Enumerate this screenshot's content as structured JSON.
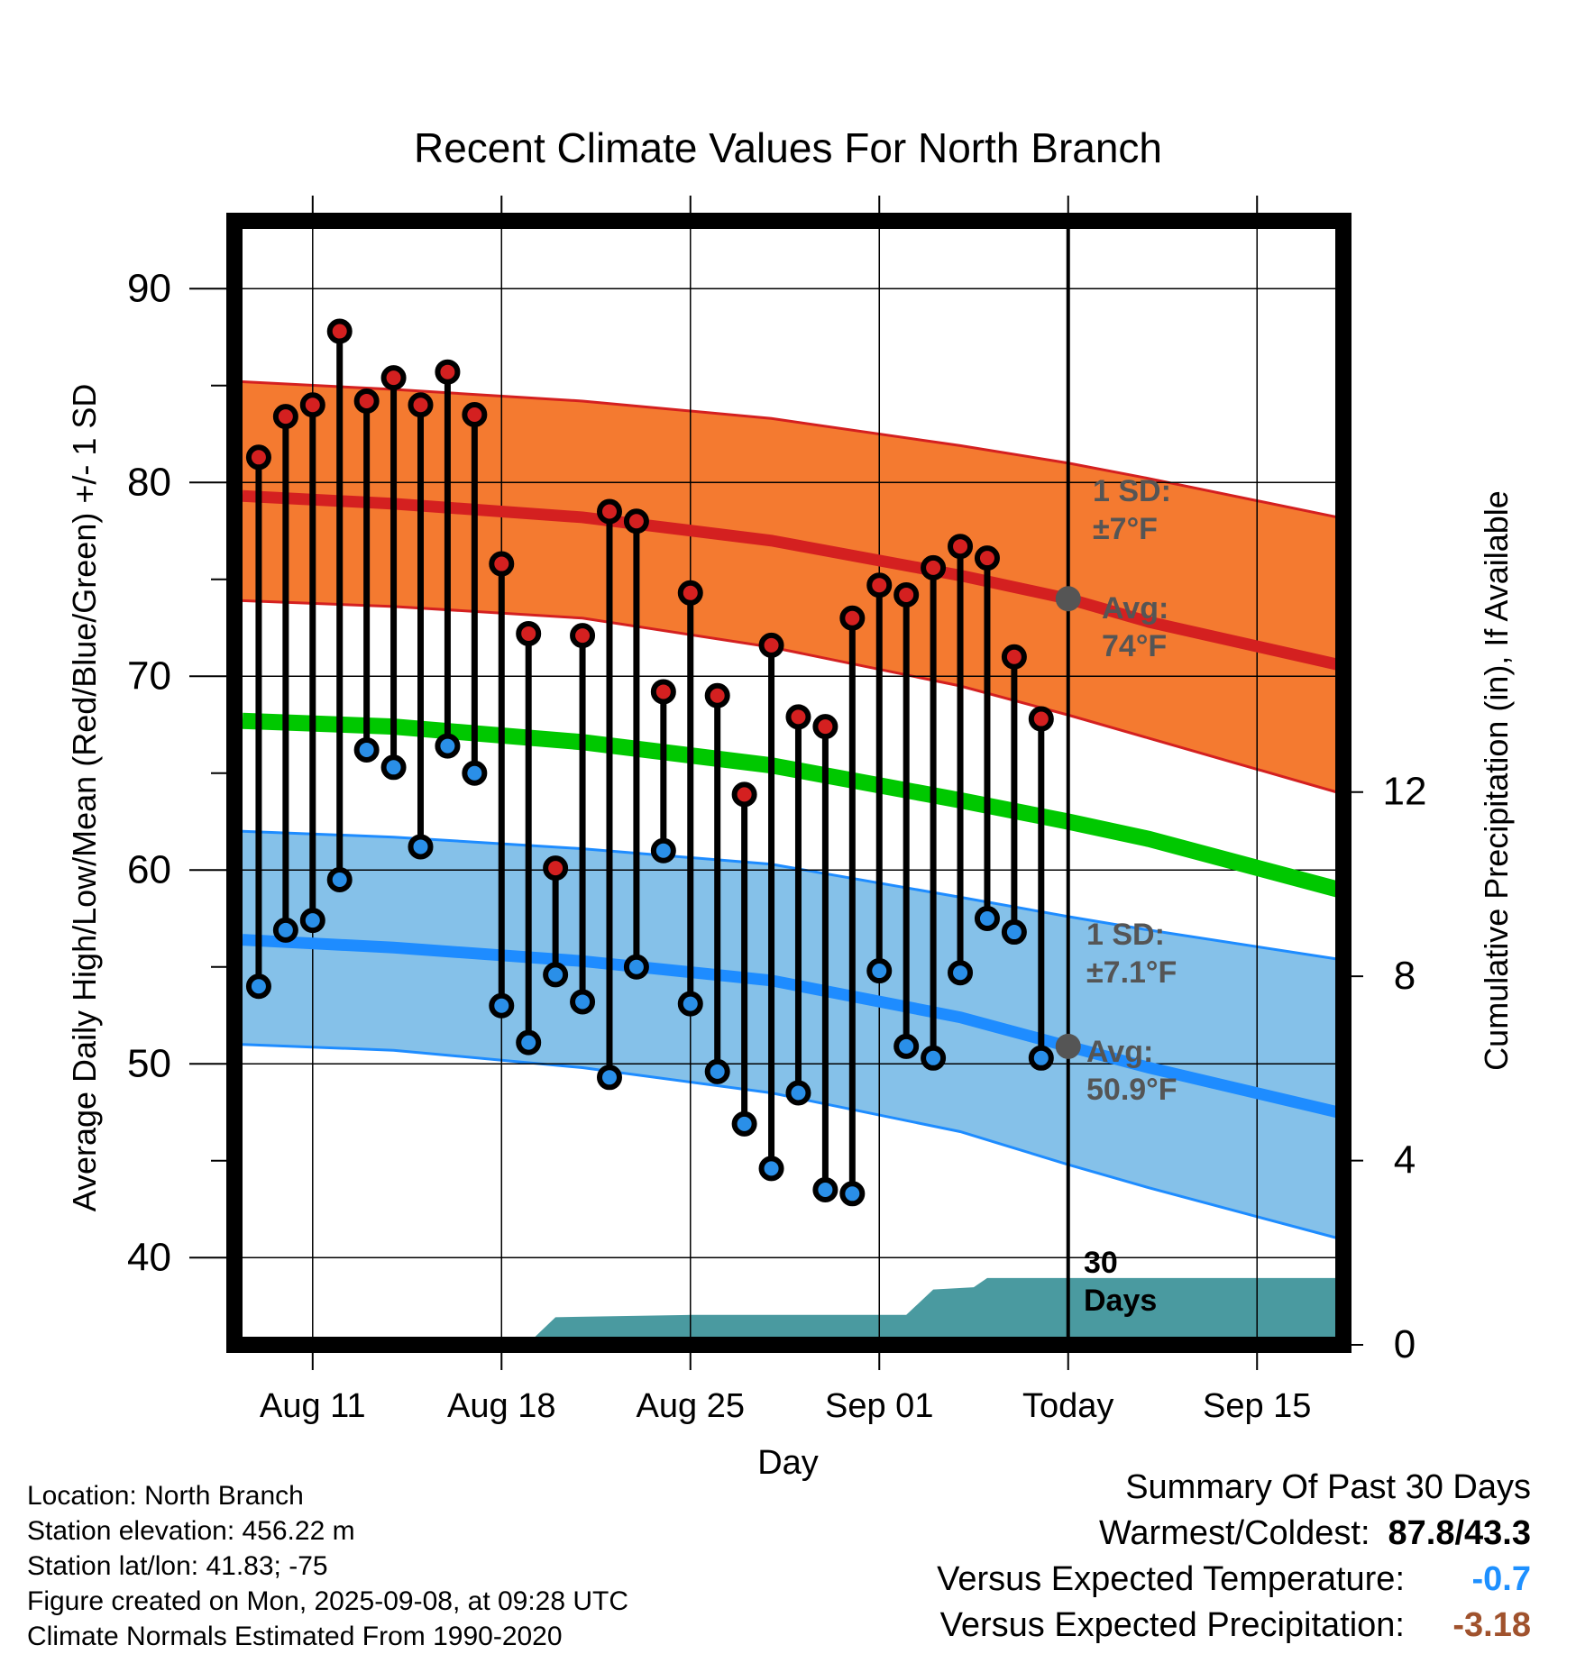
{
  "chart_data": {
    "type": "line",
    "title": "Recent Climate Values For North Branch",
    "xlabel": "Day",
    "ylabel": "Average Daily High/Low/Mean (Red/Blue/Green) +/- 1 SD",
    "ylabel_right": "Cumulative Precipitation (in), If Available",
    "ylim": [
      35.5,
      93.5
    ],
    "y_ticks": [
      40,
      50,
      60,
      70,
      80,
      90
    ],
    "y2lim": [
      0,
      24.4
    ],
    "y2_ticks": [
      0,
      4,
      8,
      12
    ],
    "xlim": [
      -2.9,
      38.2
    ],
    "x_ticks": [
      {
        "day": 0,
        "label": "Aug 11"
      },
      {
        "day": 7,
        "label": "Aug 18"
      },
      {
        "day": 14,
        "label": "Aug 25"
      },
      {
        "day": 21,
        "label": "Sep 01"
      },
      {
        "day": 28,
        "label": "Today"
      },
      {
        "day": 35,
        "label": "Sep 15"
      }
    ],
    "today_day": 28,
    "normals": {
      "days": [
        -2.6,
        3,
        10,
        17,
        24,
        28,
        31,
        38
      ],
      "high_mean": [
        79.3,
        78.9,
        78.2,
        77.0,
        75.2,
        74.0,
        72.8,
        70.6
      ],
      "high_upper": [
        85.2,
        84.8,
        84.2,
        83.3,
        81.9,
        81.0,
        80.2,
        78.2
      ],
      "high_lower": [
        73.9,
        73.6,
        73.0,
        71.5,
        69.5,
        68.0,
        66.8,
        64.0
      ],
      "avg_mean": [
        67.7,
        67.4,
        66.6,
        65.4,
        63.6,
        62.5,
        61.6,
        59.0
      ],
      "low_mean": [
        56.4,
        56.0,
        55.3,
        54.3,
        52.4,
        50.9,
        49.8,
        47.5
      ],
      "low_upper": [
        62.0,
        61.7,
        61.1,
        60.3,
        58.6,
        57.6,
        56.9,
        55.4
      ],
      "low_lower": [
        51.0,
        50.7,
        49.8,
        48.5,
        46.5,
        44.8,
        43.6,
        41.0
      ]
    },
    "series": [
      {
        "name": "High",
        "color": "#d42020",
        "values": [
          81.3,
          83.4,
          84.0,
          87.8,
          84.2,
          85.4,
          84.0,
          85.7,
          83.5,
          75.8,
          72.2,
          60.1,
          72.1,
          78.5,
          78.0,
          69.2,
          74.3,
          69.0,
          63.9,
          71.6,
          67.9,
          67.4,
          73.0,
          74.7,
          74.2,
          75.6,
          76.7,
          76.1,
          71.0,
          67.8
        ]
      },
      {
        "name": "Low",
        "color": "#2a8fe8",
        "values": [
          54.0,
          56.9,
          57.4,
          59.5,
          66.2,
          65.3,
          61.2,
          66.4,
          65.0,
          53.0,
          51.1,
          54.6,
          53.2,
          49.3,
          55.0,
          61.0,
          53.1,
          49.6,
          46.9,
          44.6,
          48.5,
          43.5,
          43.3,
          54.8,
          50.9,
          50.3,
          54.7,
          57.5,
          56.8,
          50.3
        ]
      }
    ],
    "obs_days": [
      -2,
      -1,
      0,
      1,
      2,
      3,
      4,
      5,
      6,
      7,
      8,
      9,
      10,
      11,
      12,
      13,
      14,
      15,
      16,
      17,
      18,
      19,
      20,
      21,
      22,
      23,
      24,
      25,
      26,
      27
    ],
    "precip": {
      "days": [
        -2.6,
        2,
        8,
        9,
        14,
        20,
        22,
        23,
        24.5,
        25,
        38
      ],
      "values": [
        0,
        0.04,
        0.04,
        0.6,
        0.65,
        0.65,
        0.65,
        1.2,
        1.25,
        1.45,
        1.45
      ]
    },
    "annotations": {
      "high_sd_line1": "1 SD:",
      "high_sd_line2": "±7°F",
      "high_avg_line1": "Avg:",
      "high_avg_line2": "74°F",
      "low_sd_line1": "1 SD:",
      "low_sd_line2": "±7.1°F",
      "low_avg_line1": "Avg:",
      "low_avg_line2": "50.9°F",
      "days_line1": "30",
      "days_line2": "Days"
    },
    "colors": {
      "high_band": "#f47a30",
      "high_line": "#d42020",
      "low_band": "#85c1e9",
      "low_line": "#1e8cff",
      "mean_line": "#00c800",
      "precip": "#4a9aa0",
      "annotation": "#555555"
    }
  },
  "footer": {
    "location": "Location: North Branch",
    "elevation": "Station elevation: 456.22 m",
    "latlon": "Station lat/lon: 41.83; -75",
    "created": "Figure created on Mon, 2025-09-08, at 09:28 UTC",
    "normals": "Climate Normals Estimated From 1990-2020"
  },
  "summary": {
    "title": "Summary Of Past 30 Days",
    "warm_cold_label": "Warmest/Coldest:",
    "warm_cold_value": "87.8/43.3",
    "temp_label": "Versus Expected Temperature:",
    "temp_value": "-0.7",
    "prcp_label": "Versus Expected Precipitation:",
    "prcp_value": "-3.18"
  }
}
